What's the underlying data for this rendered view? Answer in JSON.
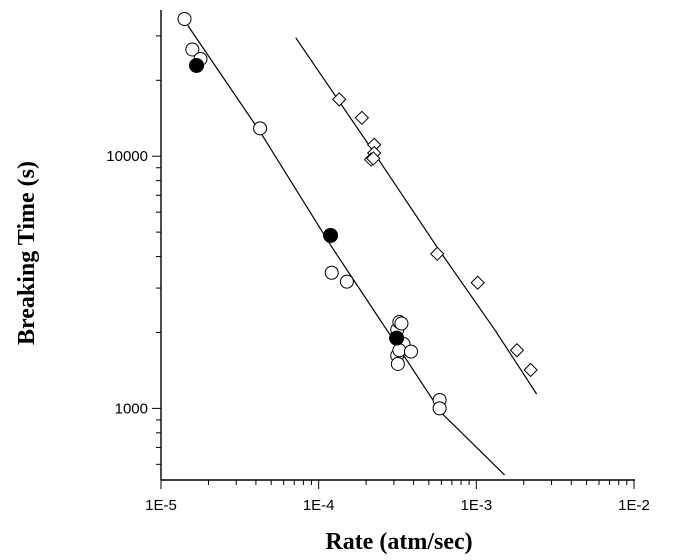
{
  "chart_data": {
    "type": "scatter",
    "title": "",
    "xlabel": "Rate (atm/sec)",
    "ylabel": "Breaking Time (s)",
    "x_scale": "log",
    "y_scale": "log",
    "xlim": [
      1e-05,
      0.01
    ],
    "ylim": [
      520,
      38000
    ],
    "x_tick_labels": [
      {
        "value": 1e-05,
        "label": "1E-5"
      },
      {
        "value": 0.0001,
        "label": "1E-4"
      },
      {
        "value": 0.001,
        "label": "1E-3"
      },
      {
        "value": 0.01,
        "label": "1E-2"
      }
    ],
    "y_tick_labels": [
      {
        "value": 1000,
        "label": "1000"
      },
      {
        "value": 10000,
        "label": "10000"
      }
    ],
    "grid": false,
    "series": [
      {
        "marker": "open-circle",
        "points": [
          [
            1.41e-05,
            35000
          ],
          [
            1.58e-05,
            26500
          ],
          [
            1.78e-05,
            24300
          ],
          [
            4.25e-05,
            12900
          ],
          [
            0.000121,
            3450
          ],
          [
            0.000151,
            3180
          ],
          [
            0.000315,
            2050
          ],
          [
            0.000325,
            2200
          ],
          [
            0.000335,
            2170
          ],
          [
            0.000345,
            1800
          ],
          [
            0.000315,
            1620
          ],
          [
            0.000325,
            1700
          ],
          [
            0.000318,
            1500
          ],
          [
            0.000385,
            1680
          ],
          [
            0.000585,
            1080
          ],
          [
            0.000585,
            1000
          ]
        ]
      },
      {
        "marker": "filled-circle",
        "points": [
          [
            1.68e-05,
            22900
          ],
          [
            0.000119,
            4850
          ],
          [
            0.000312,
            1900
          ]
        ]
      },
      {
        "marker": "open-diamond",
        "points": [
          [
            0.000135,
            16800
          ],
          [
            0.000188,
            14200
          ],
          [
            0.000225,
            11100
          ],
          [
            0.000225,
            10300
          ],
          [
            0.000215,
            9700
          ],
          [
            0.000222,
            9800
          ],
          [
            0.000565,
            4100
          ],
          [
            0.00102,
            3150
          ],
          [
            0.00181,
            1700
          ],
          [
            0.00221,
            1420
          ]
        ]
      }
    ],
    "fit_lines": [
      {
        "points": [
          [
            1.48e-05,
            33000
          ],
          [
            4.25e-05,
            12500
          ],
          [
            0.00012,
            4400
          ],
          [
            0.00031,
            1800
          ],
          [
            0.0006,
            960
          ],
          [
            0.00151,
            545
          ]
        ]
      },
      {
        "points": [
          [
            7.15e-05,
            29500
          ],
          [
            0.0002,
            11500
          ],
          [
            0.00058,
            4250
          ],
          [
            0.00131,
            2050
          ],
          [
            0.00241,
            1140
          ]
        ]
      }
    ]
  }
}
